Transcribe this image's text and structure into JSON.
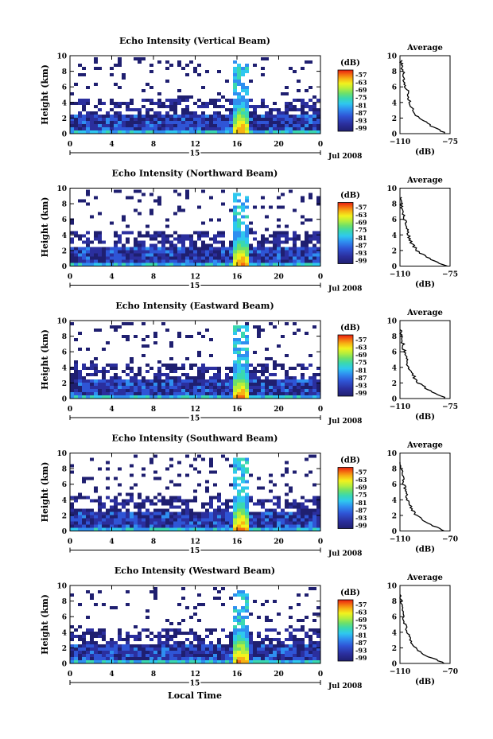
{
  "colors": {
    "colorbar": [
      "#1f1f70",
      "#2b2f9e",
      "#2f55d6",
      "#2f8ff0",
      "#2fc8ef",
      "#3ad8b0",
      "#6ee06a",
      "#b6ee3c",
      "#f2f21e",
      "#f7b214",
      "#f46a10",
      "#e81c10"
    ],
    "background": "#ffffff",
    "axis": "#000000"
  },
  "panels": [
    {
      "title": "Echo Intensity (Vertical Beam)",
      "ylabel": "Height (km)",
      "colorbar_label": "(dB)",
      "colorbar_ticks": [
        "-57",
        "-63",
        "-69",
        "-75",
        "-81",
        "-87",
        "-93",
        "-99"
      ],
      "date_label": "Jul 2008",
      "day_label": "15",
      "x_ticks": [
        "0",
        "4",
        "8",
        "12",
        "16",
        "20",
        "0"
      ],
      "y_ticks": [
        "0",
        "2",
        "4",
        "6",
        "8",
        "10"
      ],
      "avg_title": "Average",
      "avg_xlabel": "(dB)",
      "avg_xticks": [
        "−110",
        "−75"
      ],
      "avg_yticks": [
        "0",
        "2",
        "4",
        "6",
        "8",
        "10"
      ]
    },
    {
      "title": "Echo Intensity (Northward Beam)",
      "ylabel": "Height (km)",
      "colorbar_label": "(dB)",
      "colorbar_ticks": [
        "-57",
        "-63",
        "-69",
        "-75",
        "-81",
        "-87",
        "-93",
        "-99"
      ],
      "date_label": "Jul 2008",
      "day_label": "15",
      "x_ticks": [
        "0",
        "4",
        "8",
        "12",
        "16",
        "20",
        "0"
      ],
      "y_ticks": [
        "0",
        "2",
        "4",
        "6",
        "8",
        "10"
      ],
      "avg_title": "Average",
      "avg_xlabel": "(dB)",
      "avg_xticks": [
        "−110",
        "−75"
      ],
      "avg_yticks": [
        "0",
        "2",
        "4",
        "6",
        "8",
        "10"
      ]
    },
    {
      "title": "Echo Intensity (Eastward Beam)",
      "ylabel": "Height (km)",
      "colorbar_label": "(dB)",
      "colorbar_ticks": [
        "-57",
        "-63",
        "-69",
        "-75",
        "-81",
        "-87",
        "-93",
        "-99"
      ],
      "date_label": "Jul 2008",
      "day_label": "15",
      "x_ticks": [
        "0",
        "4",
        "8",
        "12",
        "16",
        "20",
        "0"
      ],
      "y_ticks": [
        "0",
        "2",
        "4",
        "6",
        "8",
        "10"
      ],
      "avg_title": "Average",
      "avg_xlabel": "(dB)",
      "avg_xticks": [
        "−110",
        "−75"
      ],
      "avg_yticks": [
        "0",
        "2",
        "4",
        "6",
        "8",
        "10"
      ]
    },
    {
      "title": "Echo Intensity (Southward Beam)",
      "ylabel": "Height (km)",
      "colorbar_label": "(dB)",
      "colorbar_ticks": [
        "-57",
        "-63",
        "-69",
        "-75",
        "-81",
        "-87",
        "-93",
        "-99"
      ],
      "date_label": "Jul 2008",
      "day_label": "15",
      "x_ticks": [
        "0",
        "4",
        "8",
        "12",
        "16",
        "20",
        "0"
      ],
      "y_ticks": [
        "0",
        "2",
        "4",
        "6",
        "8",
        "10"
      ],
      "avg_title": "Average",
      "avg_xlabel": "(dB)",
      "avg_xticks": [
        "−110",
        "−70"
      ],
      "avg_yticks": [
        "0",
        "2",
        "4",
        "6",
        "8",
        "10"
      ]
    },
    {
      "title": "Echo Intensity (Westward Beam)",
      "ylabel": "Height (km)",
      "colorbar_label": "(dB)",
      "colorbar_ticks": [
        "-57",
        "-63",
        "-69",
        "-75",
        "-81",
        "-87",
        "-93",
        "-99"
      ],
      "date_label": "Jul 2008",
      "day_label": "15",
      "x_ticks": [
        "0",
        "4",
        "8",
        "12",
        "16",
        "20",
        "0"
      ],
      "y_ticks": [
        "0",
        "2",
        "4",
        "6",
        "8",
        "10"
      ],
      "avg_title": "Average",
      "avg_xlabel": "(dB)",
      "avg_xticks": [
        "−110",
        "−70"
      ],
      "avg_yticks": [
        "0",
        "2",
        "4",
        "6",
        "8",
        "10"
      ]
    }
  ],
  "xlabel_bottom": "Local Time",
  "chart_data": [
    {
      "type": "heatmap",
      "title": "Echo Intensity (Vertical Beam)",
      "x_label": "Local Time (hours, 15 Jul 2008)",
      "y_label": "Height (km)",
      "xlim": [
        0,
        24
      ],
      "ylim": [
        0,
        10
      ],
      "colorbar_range_dB": [
        -99,
        -57
      ],
      "feature": "strong echo column centered near 16 h, 0-6 km",
      "average_profile": {
        "xlim_dB": [
          -110,
          -75
        ],
        "height_km": [
          0,
          1,
          2,
          3,
          4,
          5,
          6,
          7,
          8,
          9,
          9.5
        ],
        "dB": [
          -78,
          -88,
          -97,
          -101,
          -103,
          -104,
          -106,
          -107,
          -108,
          -109,
          -110
        ]
      }
    },
    {
      "type": "heatmap",
      "title": "Echo Intensity (Northward Beam)",
      "xlim": [
        0,
        24
      ],
      "ylim": [
        0,
        10
      ],
      "colorbar_range_dB": [
        -99,
        -57
      ],
      "average_profile": {
        "xlim_dB": [
          -110,
          -75
        ],
        "height_km": [
          0,
          1,
          2,
          3,
          4,
          5,
          6,
          7,
          8,
          9
        ],
        "dB": [
          -78,
          -90,
          -98,
          -102,
          -104,
          -105,
          -107,
          -108,
          -109,
          -110
        ]
      }
    },
    {
      "type": "heatmap",
      "title": "Echo Intensity (Eastward Beam)",
      "xlim": [
        0,
        24
      ],
      "ylim": [
        0,
        10
      ],
      "colorbar_range_dB": [
        -99,
        -57
      ],
      "average_profile": {
        "xlim_dB": [
          -110,
          -75
        ],
        "height_km": [
          0,
          1,
          2,
          3,
          4,
          5,
          6,
          7,
          8,
          9
        ],
        "dB": [
          -78,
          -89,
          -97,
          -101,
          -104,
          -105,
          -107,
          -108,
          -109,
          -110
        ]
      }
    },
    {
      "type": "heatmap",
      "title": "Echo Intensity (Southward Beam)",
      "xlim": [
        0,
        24
      ],
      "ylim": [
        0,
        10
      ],
      "colorbar_range_dB": [
        -99,
        -57
      ],
      "average_profile": {
        "xlim_dB": [
          -110,
          -70
        ],
        "height_km": [
          0,
          1,
          2,
          3,
          4,
          5,
          6,
          7,
          8,
          9
        ],
        "dB": [
          -74,
          -88,
          -97,
          -101,
          -104,
          -105,
          -107,
          -108,
          -109,
          -110
        ]
      }
    },
    {
      "type": "heatmap",
      "title": "Echo Intensity (Westward Beam)",
      "xlim": [
        0,
        24
      ],
      "ylim": [
        0,
        10
      ],
      "colorbar_range_dB": [
        -99,
        -57
      ],
      "average_profile": {
        "xlim_dB": [
          -110,
          -70
        ],
        "height_km": [
          0,
          1,
          2,
          3,
          4,
          5,
          6,
          7,
          8,
          9
        ],
        "dB": [
          -74,
          -89,
          -98,
          -102,
          -104,
          -106,
          -107,
          -108,
          -109,
          -110
        ]
      }
    }
  ]
}
